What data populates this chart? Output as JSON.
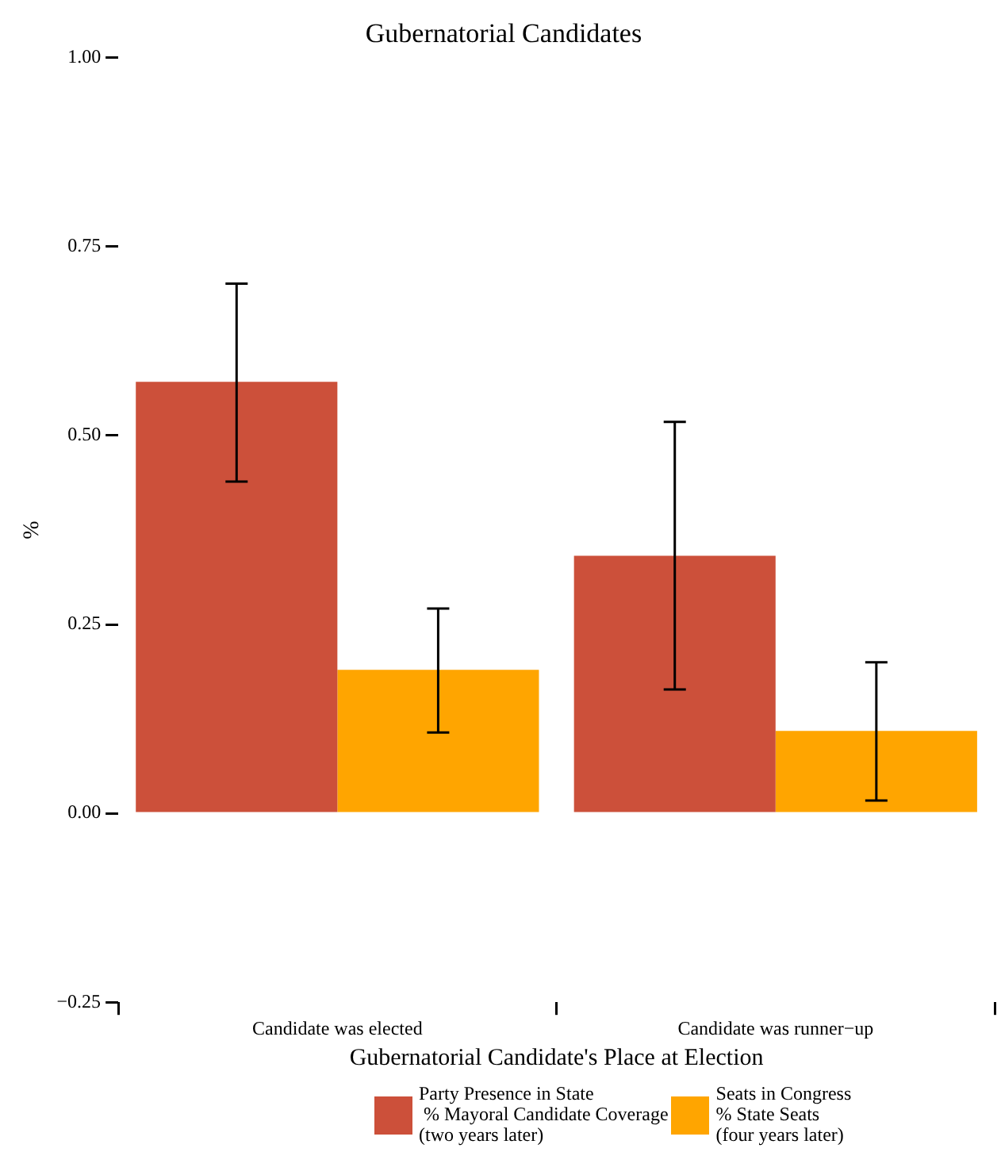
{
  "chart_data": {
    "type": "bar",
    "title": "Gubernatorial Candidates",
    "xlabel": "Gubernatorial Candidate's Place at Election",
    "ylabel": "%",
    "categories": [
      "Candidate was elected",
      "Candidate was runner−up"
    ],
    "series": [
      {
        "name": "Party Presence in State\n % Mayoral Candidate Coverage\n(two years later)",
        "color": "#cc503a",
        "values": [
          0.571,
          0.341
        ],
        "errors": [
          [
            0.439,
            0.701
          ],
          [
            0.164,
            0.518
          ]
        ]
      },
      {
        "name": "Seats in Congress\n% State Seats\n(four years later)",
        "color": "#ffa500",
        "values": [
          0.19,
          0.109
        ],
        "errors": [
          [
            0.107,
            0.271
          ],
          [
            0.017,
            0.2
          ]
        ]
      }
    ],
    "ylim": [
      -0.25,
      1.0
    ],
    "yticks": [
      {
        "value": -0.25,
        "label": "−0.25"
      },
      {
        "value": 0,
        "label": "0.00"
      },
      {
        "value": 0.25,
        "label": "0.25"
      },
      {
        "value": 0.5,
        "label": "0.50"
      },
      {
        "value": 0.75,
        "label": "0.75"
      },
      {
        "value": 1,
        "label": "1.00"
      }
    ],
    "grid": false,
    "legend": "bottom"
  }
}
